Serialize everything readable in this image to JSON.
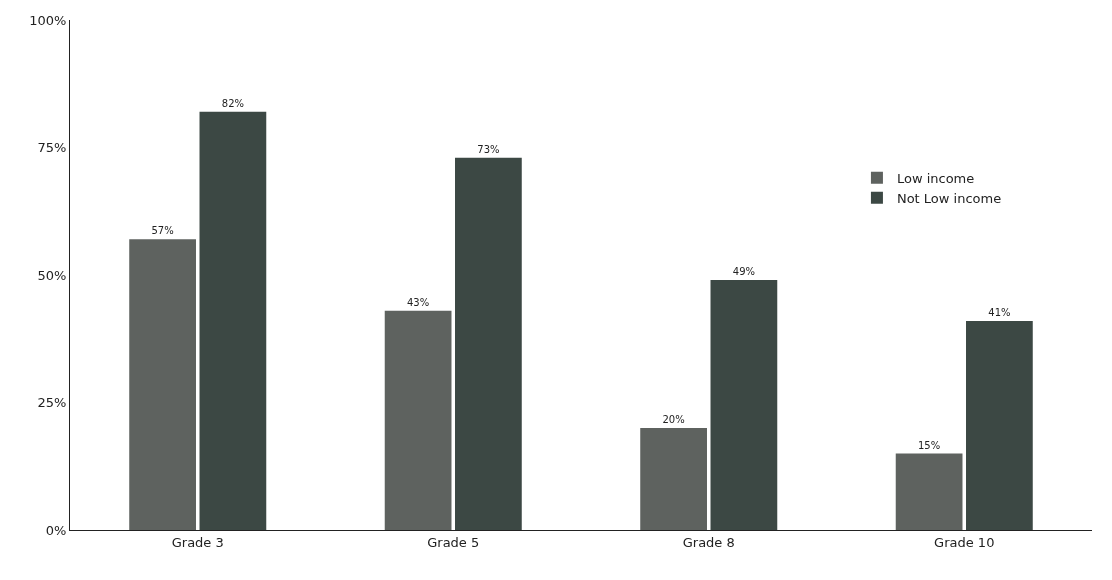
{
  "chart_data": {
    "type": "bar",
    "categories": [
      "Grade 3",
      "Grade 5",
      "Grade 8",
      "Grade 10"
    ],
    "series": [
      {
        "name": "Low income",
        "color": "#5e625f",
        "values": [
          57,
          43,
          20,
          15
        ],
        "value_labels": [
          "57%",
          "43%",
          "20%",
          "15%"
        ]
      },
      {
        "name": "Not Low income",
        "color": "#3c4844",
        "values": [
          82,
          73,
          49,
          41
        ],
        "value_labels": [
          "82%",
          "73%",
          "49%",
          "41%"
        ]
      }
    ],
    "ylim": [
      0,
      100
    ],
    "yticks": [
      {
        "value": 0,
        "label": "0%"
      },
      {
        "value": 25,
        "label": "25%"
      },
      {
        "value": 50,
        "label": "50%"
      },
      {
        "value": 75,
        "label": "75%"
      },
      {
        "value": 100,
        "label": "100%"
      }
    ],
    "grid": false,
    "legend": "right"
  }
}
